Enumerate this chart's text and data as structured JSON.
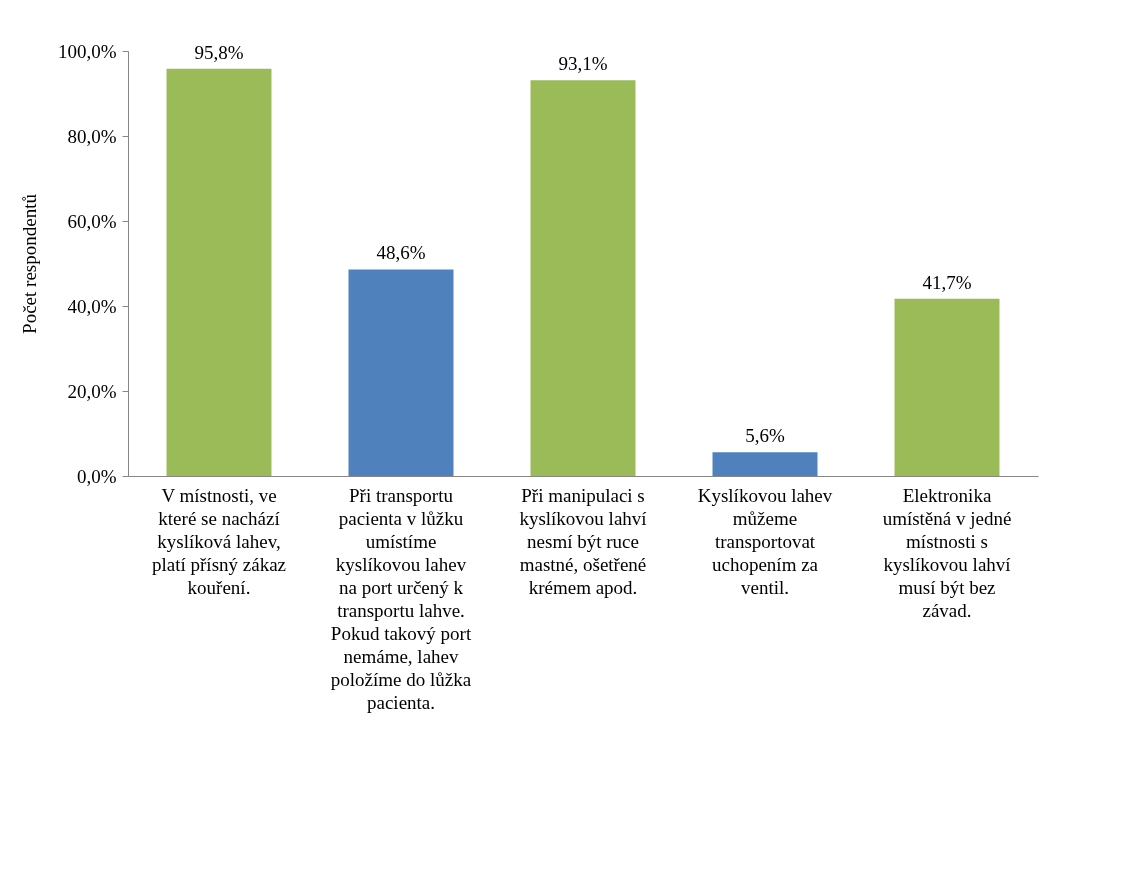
{
  "chart_data": {
    "type": "bar",
    "ylabel": "Počet respondentů",
    "categories": [
      "V místnosti, ve které se nachází kyslíková lahev, platí přísný zákaz kouření.",
      "Při transportu pacienta v lůžku umístíme kyslíkovou lahev na port určený k transportu lahve. Pokud takový port nemáme, lahev položíme do lůžka pacienta.",
      "Při manipulaci s kyslíkovou lahví nesmí být ruce mastné, ošetřené krémem apod.",
      "Kyslíkovou lahev můžeme transportovat uchopením za ventil.",
      "Elektronika umístěná v jedné místnosti s kyslíkovou lahví musí být bez závad."
    ],
    "values": [
      95.8,
      48.6,
      93.1,
      5.6,
      41.7
    ],
    "colors": [
      "#9bbb59",
      "#4f81bd",
      "#9bbb59",
      "#4f81bd",
      "#9bbb59"
    ],
    "value_labels": [
      "95,8%",
      "48,6%",
      "93,1%",
      "5,6%",
      "41,7%"
    ],
    "ylim": [
      0,
      100
    ],
    "yticks": [
      {
        "value": 0,
        "label": "0,0%"
      },
      {
        "value": 20,
        "label": "20,0%"
      },
      {
        "value": 40,
        "label": "40,0%"
      },
      {
        "value": 60,
        "label": "60,0%"
      },
      {
        "value": 80,
        "label": "80,0%"
      },
      {
        "value": 100,
        "label": "100,0%"
      }
    ],
    "grid": false
  }
}
